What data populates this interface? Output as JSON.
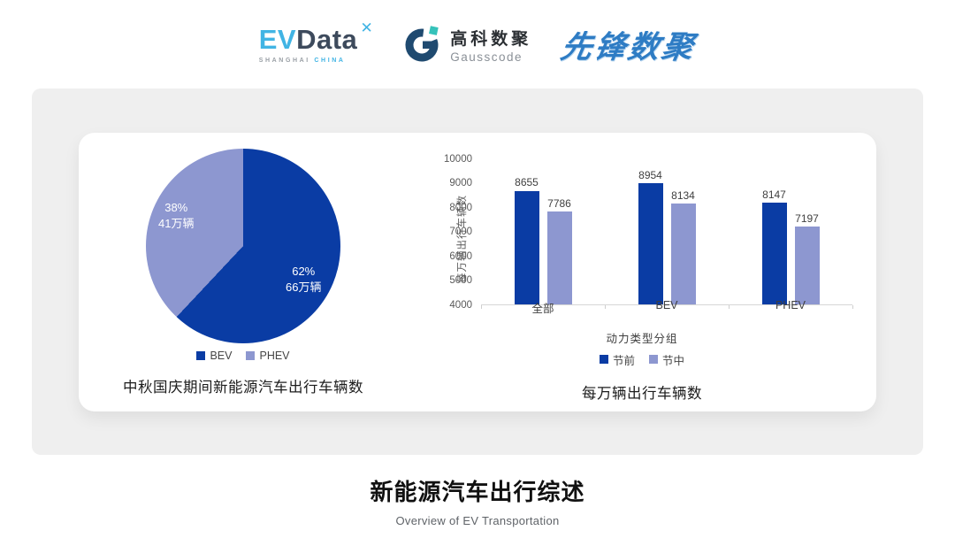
{
  "header": {
    "evdata": {
      "part1": "EV",
      "part2": "Data",
      "mark": "✕",
      "sub_left": "SHANGHAI",
      "sub_right": "CHINA"
    },
    "gausscode": {
      "name_cn": "高科数聚",
      "name_en": "Gausscode"
    },
    "pioneer": {
      "name": "先锋数聚"
    }
  },
  "colors": {
    "series_dark_blue": "#0a3ca4",
    "series_light_blue": "#8d97d0",
    "panel_bg": "#efefef",
    "evdata_cyan": "#41b4e4",
    "evdata_slate": "#3d4a5c",
    "gauss_navy": "#1f4a70",
    "gauss_teal": "#35c2ba",
    "pioneer_blue": "#2e7cc4"
  },
  "chart_data": [
    {
      "type": "pie",
      "title": "中秋国庆期间新能源汽车出行车辆数",
      "start": "top-clockwise",
      "slices": [
        {
          "label": "BEV",
          "percent": 62,
          "percent_label": "62%",
          "amount_label": "66万辆",
          "color": "#0a3ca4"
        },
        {
          "label": "PHEV",
          "percent": 38,
          "percent_label": "38%",
          "amount_label": "41万辆",
          "color": "#8d97d0"
        }
      ]
    },
    {
      "type": "bar",
      "title": "每万辆出行车辆数",
      "categories": [
        "全部",
        "BEV",
        "PHEV"
      ],
      "series": [
        {
          "name": "节前",
          "color": "#0a3ca4",
          "values": [
            8655,
            8954,
            8147
          ]
        },
        {
          "name": "节中",
          "color": "#8d97d0",
          "values": [
            7786,
            8134,
            7197
          ]
        }
      ],
      "ylabel": "每万辆出行车辆数",
      "xlabel": "动力类型分组",
      "ylim": [
        4000,
        10000
      ],
      "ytick_step": 1000,
      "grid": false,
      "legend_position": "bottom"
    }
  ],
  "footer": {
    "title": "新能源汽车出行综述",
    "subtitle": "Overview of EV Transportation"
  }
}
